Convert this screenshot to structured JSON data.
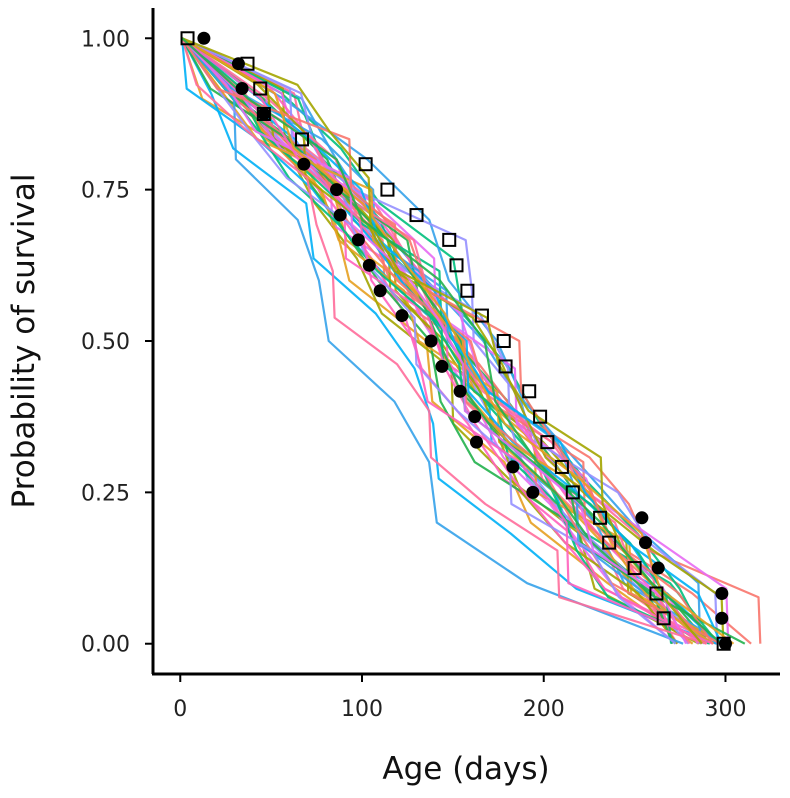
{
  "chart_data": {
    "type": "line",
    "title": "",
    "xlabel": "Age (days)",
    "ylabel": "Probability of survival",
    "xlim": [
      -15,
      330
    ],
    "ylim": [
      -0.05,
      1.05
    ],
    "x_ticks": [
      0,
      100,
      200,
      300
    ],
    "y_ticks": [
      0.0,
      0.25,
      0.5,
      0.75,
      1.0
    ],
    "x_tick_labels": [
      "0",
      "100",
      "200",
      "300"
    ],
    "y_tick_labels": [
      "0.00",
      "0.25",
      "0.50",
      "0.75",
      "1.00"
    ],
    "grid": false,
    "legend": "none",
    "simulation_colors": [
      "#f8766d",
      "#e6a021",
      "#a3a500",
      "#22b14c",
      "#00bf7d",
      "#00b0f6",
      "#35a2ea",
      "#9590ff",
      "#e76bf3",
      "#ff62bc",
      "#ff6d9b"
    ],
    "simulation_count": 48,
    "series": [
      {
        "name": "Observed (filled circles)",
        "marker": "filled-circle",
        "points": [
          [
            13,
            1.0
          ],
          [
            32,
            0.958
          ],
          [
            34,
            0.917
          ],
          [
            46,
            0.875
          ],
          [
            68,
            0.792
          ],
          [
            86,
            0.75
          ],
          [
            88,
            0.708
          ],
          [
            98,
            0.667
          ],
          [
            104,
            0.625
          ],
          [
            110,
            0.583
          ],
          [
            122,
            0.542
          ],
          [
            138,
            0.5
          ],
          [
            144,
            0.458
          ],
          [
            154,
            0.417
          ],
          [
            162,
            0.375
          ],
          [
            163,
            0.333
          ],
          [
            183,
            0.292
          ],
          [
            194,
            0.25
          ],
          [
            254,
            0.208
          ],
          [
            256,
            0.167
          ],
          [
            263,
            0.125
          ],
          [
            298,
            0.083
          ],
          [
            298,
            0.042
          ],
          [
            300,
            0.0
          ]
        ]
      },
      {
        "name": "Observed (open squares)",
        "marker": "open-square",
        "points": [
          [
            4,
            1.0
          ],
          [
            37,
            0.958
          ],
          [
            44,
            0.917
          ],
          [
            46,
            0.875
          ],
          [
            67,
            0.833
          ],
          [
            102,
            0.792
          ],
          [
            114,
            0.75
          ],
          [
            130,
            0.708
          ],
          [
            148,
            0.667
          ],
          [
            152,
            0.625
          ],
          [
            158,
            0.583
          ],
          [
            166,
            0.542
          ],
          [
            178,
            0.5
          ],
          [
            179,
            0.458
          ],
          [
            192,
            0.417
          ],
          [
            198,
            0.375
          ],
          [
            202,
            0.333
          ],
          [
            210,
            0.292
          ],
          [
            216,
            0.25
          ],
          [
            231,
            0.208
          ],
          [
            236,
            0.167
          ],
          [
            250,
            0.125
          ],
          [
            262,
            0.083
          ],
          [
            266,
            0.042
          ],
          [
            299,
            0.0
          ]
        ]
      }
    ]
  }
}
